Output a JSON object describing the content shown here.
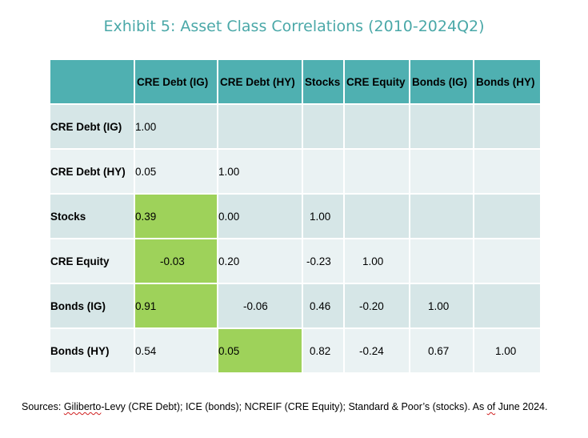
{
  "title": "Exhibit 5: Asset Class Correlations (2010-2024Q2)",
  "columns": [
    "CRE Debt (IG)",
    "CRE Debt (HY)",
    "Stocks",
    "CRE Equity",
    "Bonds (IG)",
    "Bonds (HY)"
  ],
  "rows": [
    {
      "label": "CRE Debt (IG)",
      "values": [
        "1.00",
        "",
        "",
        "",
        "",
        ""
      ]
    },
    {
      "label": "CRE Debt (HY)",
      "values": [
        "0.05",
        "1.00",
        "",
        "",
        "",
        ""
      ]
    },
    {
      "label": "Stocks",
      "values": [
        "0.39",
        "0.00",
        "1.00",
        "",
        "",
        ""
      ]
    },
    {
      "label": "CRE Equity",
      "values": [
        "-0.03",
        "0.20",
        "-0.23",
        "1.00",
        "",
        ""
      ]
    },
    {
      "label": "Bonds (IG)",
      "values": [
        "0.91",
        "-0.06",
        "0.46",
        "-0.20",
        "1.00",
        ""
      ]
    },
    {
      "label": "Bonds (HY)",
      "values": [
        "0.54",
        "0.05",
        "0.82",
        "-0.24",
        "0.67",
        "1.00"
      ]
    }
  ],
  "highlight_color": "#9ed25a",
  "header_color": "#4fb0b1",
  "source": {
    "prefix": "Sources: ",
    "underlined": "Giliberto",
    "rest": "-Levy (CRE Debt); ICE (bonds); NCREIF (CRE Equity); Standard & Poor’s (stocks). As ",
    "underlined2": "of",
    "suffix": " June 2024."
  }
}
